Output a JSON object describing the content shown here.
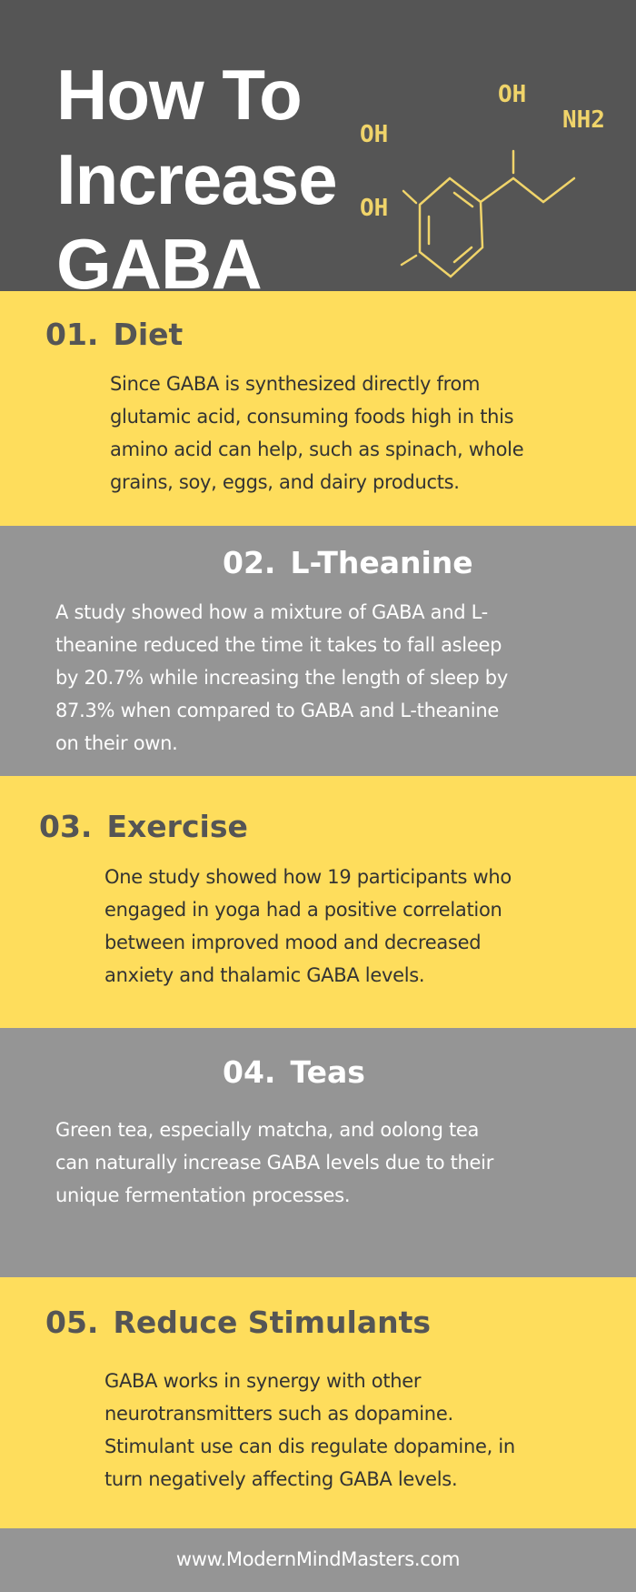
{
  "header": {
    "title_lines": [
      "How To",
      "Increase",
      "GABA"
    ],
    "molecule": {
      "labels": {
        "oh_top": "OH",
        "nh2": "NH2",
        "oh_left_top": "OH",
        "oh_left_bottom": "OH"
      },
      "color": "#F0D46A",
      "icon": "molecule-structure-icon"
    }
  },
  "colors": {
    "header_bg": "#555555",
    "yellow": "#FEDD5C",
    "grey": "#959595"
  },
  "sections": [
    {
      "number": "01.",
      "title": "Diet",
      "lines": [
        "Since GABA is synthesized directly from",
        "glutamic acid, consuming foods high in this",
        "amino acid can help, such as spinach, whole",
        "grains, soy, eggs, and dairy products."
      ]
    },
    {
      "number": "02.",
      "title": "L-Theanine",
      "lines": [
        "A study showed how a mixture of GABA and L-",
        "theanine reduced the time it takes to fall asleep",
        "by 20.7% while increasing the length of sleep by",
        "87.3% when compared to GABA and L-theanine",
        "on their own."
      ]
    },
    {
      "number": "03.",
      "title": "Exercise",
      "lines": [
        "One study showed how 19 participants who",
        "engaged in yoga had a positive correlation",
        "between improved mood and decreased",
        "anxiety and thalamic GABA levels."
      ]
    },
    {
      "number": "04.",
      "title": "Teas",
      "lines": [
        "Green tea, especially matcha, and oolong tea",
        "can naturally increase GABA levels due to their",
        "unique fermentation processes."
      ]
    },
    {
      "number": "05.",
      "title": "Reduce Stimulants",
      "lines": [
        "GABA works in synergy with other",
        "neurotransmitters such as dopamine.",
        "Stimulant use can dis regulate dopamine, in",
        "turn negatively affecting GABA levels."
      ]
    }
  ],
  "footer": {
    "url": "www.ModernMindMasters.com"
  }
}
